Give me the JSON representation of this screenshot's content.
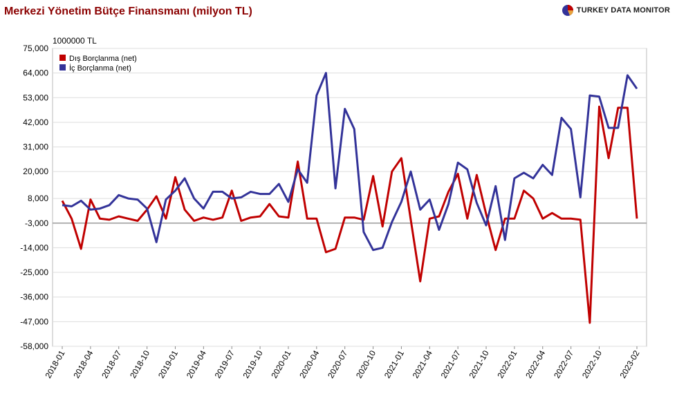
{
  "header": {
    "title": "Merkezi Yönetim Bütçe Finansmanı (milyon TL)",
    "brand": "TURKEY DATA MONITOR"
  },
  "colors": {
    "dis": "#c00000",
    "ic": "#333399",
    "grid": "#dddddd",
    "zero": "#999999",
    "title": "#8b0000"
  },
  "chart_data": {
    "type": "line",
    "unit_label": "1000000 TL",
    "ylim": [
      -58000,
      75000
    ],
    "yticks": [
      75000,
      64000,
      53000,
      42000,
      31000,
      20000,
      8000,
      -3000,
      -14000,
      -25000,
      -36000,
      -47000,
      -58000
    ],
    "ytick_labels": [
      "75,000",
      "64,000",
      "53,000",
      "42,000",
      "31,000",
      "20,000",
      "8,000",
      "-3,000",
      "-14,000",
      "-25,000",
      "-36,000",
      "-47,000",
      "-58,000"
    ],
    "x_tick_labels": [
      "2018-01",
      "2018-04",
      "2018-07",
      "2018-10",
      "2019-01",
      "2019-04",
      "2019-07",
      "2019-10",
      "2020-01",
      "2020-04",
      "2020-07",
      "2020-10",
      "2021-01",
      "2021-04",
      "2021-07",
      "2021-10",
      "2022-01",
      "2022-04",
      "2022-07",
      "2022-10",
      "2023-02"
    ],
    "x": [
      "2018-01",
      "2018-02",
      "2018-03",
      "2018-04",
      "2018-05",
      "2018-06",
      "2018-07",
      "2018-08",
      "2018-09",
      "2018-10",
      "2018-11",
      "2018-12",
      "2019-01",
      "2019-02",
      "2019-03",
      "2019-04",
      "2019-05",
      "2019-06",
      "2019-07",
      "2019-08",
      "2019-09",
      "2019-10",
      "2019-11",
      "2019-12",
      "2020-01",
      "2020-02",
      "2020-03",
      "2020-04",
      "2020-05",
      "2020-06",
      "2020-07",
      "2020-08",
      "2020-09",
      "2020-10",
      "2020-11",
      "2020-12",
      "2021-01",
      "2021-02",
      "2021-03",
      "2021-04",
      "2021-05",
      "2021-06",
      "2021-07",
      "2021-08",
      "2021-09",
      "2021-10",
      "2021-11",
      "2021-12",
      "2022-01",
      "2022-02",
      "2022-03",
      "2022-04",
      "2022-05",
      "2022-06",
      "2022-07",
      "2022-08",
      "2022-09",
      "2022-10",
      "2022-11",
      "2022-12",
      "2023-01",
      "2023-02"
    ],
    "legend_position": "top-left",
    "grid": true,
    "series": [
      {
        "name": "Dış Borçlanma (net)",
        "values": [
          7000,
          -1000,
          -14500,
          7500,
          -1000,
          -1500,
          0,
          -1000,
          -2000,
          3000,
          9000,
          -1000,
          17500,
          3000,
          -2000,
          -500,
          -1500,
          -500,
          11500,
          -2000,
          -500,
          0,
          5500,
          0,
          -500,
          24500,
          -1000,
          -1000,
          -16000,
          -14500,
          -500,
          -500,
          -1500,
          18000,
          -4500,
          20000,
          26000,
          -1500,
          -29000,
          -1000,
          0,
          11000,
          19000,
          -1000,
          18500,
          1000,
          -15000,
          -1000,
          -1000,
          11500,
          8000,
          -1000,
          1500,
          -1000,
          -1000,
          -1500,
          -47500,
          49000,
          26000,
          48500,
          48500,
          -1000
        ]
      },
      {
        "name": "İç Borçlanma (net)",
        "values": [
          5000,
          4500,
          7000,
          3000,
          3500,
          5000,
          9500,
          8000,
          7500,
          3500,
          -11500,
          7500,
          11500,
          17000,
          8000,
          3500,
          11000,
          11000,
          8000,
          8500,
          11000,
          10000,
          10000,
          14500,
          6500,
          21000,
          15000,
          54000,
          64000,
          12500,
          48000,
          39000,
          -7000,
          -15000,
          -14000,
          -2500,
          6500,
          20000,
          3000,
          7500,
          -6000,
          5500,
          24000,
          21000,
          6000,
          -4000,
          13500,
          -10500,
          17000,
          19500,
          17000,
          23000,
          18500,
          44000,
          39000,
          8500,
          54000,
          53500,
          39500,
          39500,
          63000,
          57000
        ]
      }
    ]
  }
}
